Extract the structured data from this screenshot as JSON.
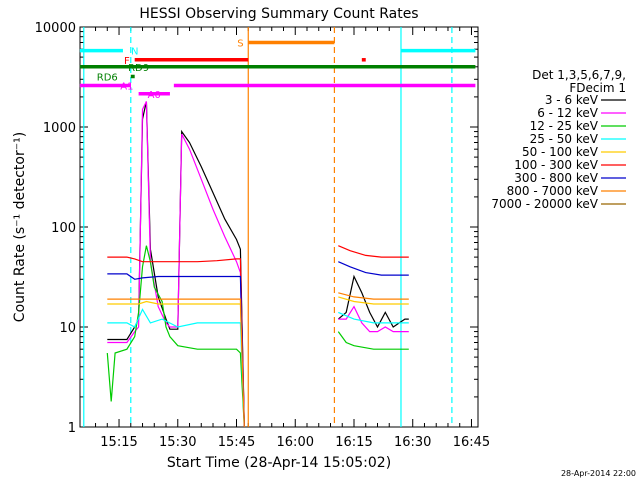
{
  "chart_data": {
    "type": "line",
    "title": "HESSI Observing Summary Count Rates",
    "xlabel": "Start Time (28-Apr-14 15:05:02)",
    "ylabel": "Count Rate (s⁻¹ detector⁻¹)",
    "yscale": "log",
    "ylim": [
      1,
      10000
    ],
    "xlim": [
      "15:05:02",
      "16:46:40"
    ],
    "y_tick_labels": [
      "1",
      "10",
      "100",
      "1000",
      "10000"
    ],
    "x_tick_labels": [
      "15:15",
      "15:30",
      "15:45",
      "16:00",
      "16:15",
      "16:30",
      "16:45"
    ],
    "legend_header": [
      "Det 1,3,5,6,7,9,",
      "FDecim 1"
    ],
    "footer_date": "28-Apr-2014 22:00",
    "series": [
      {
        "name": "3 - 6 keV",
        "color": "#000000",
        "segments": [
          [
            [
              "15:12",
              7.5
            ],
            [
              "15:17",
              7.5
            ],
            [
              "15:19",
              10
            ],
            [
              "15:20",
              12
            ],
            [
              "15:21",
              1200
            ],
            [
              "15:22",
              1800
            ],
            [
              "15:23",
              60
            ],
            [
              "15:25",
              20
            ],
            [
              "15:27",
              12
            ],
            [
              "15:28",
              9.5
            ],
            [
              "15:30",
              9.5
            ],
            [
              "15:31",
              900
            ],
            [
              "15:33",
              700
            ],
            [
              "15:36",
              400
            ],
            [
              "15:39",
              220
            ],
            [
              "15:42",
              120
            ],
            [
              "15:45",
              75
            ],
            [
              "15:46",
              60
            ],
            [
              "15:47",
              1
            ]
          ],
          [
            [
              "16:11",
              12
            ],
            [
              "16:13",
              14
            ],
            [
              "16:15",
              32
            ],
            [
              "16:17",
              22
            ],
            [
              "16:19",
              14
            ],
            [
              "16:21",
              10
            ],
            [
              "16:23",
              14
            ],
            [
              "16:25",
              10
            ],
            [
              "16:28",
              12
            ],
            [
              "16:29",
              12
            ]
          ]
        ]
      },
      {
        "name": "6 - 12 keV",
        "color": "#ff00ff",
        "segments": [
          [
            [
              "15:12",
              7
            ],
            [
              "15:17",
              7
            ],
            [
              "15:19",
              9
            ],
            [
              "15:20",
              10
            ],
            [
              "15:21",
              1500
            ],
            [
              "15:22",
              1800
            ],
            [
              "15:23",
              45
            ],
            [
              "15:25",
              16
            ],
            [
              "15:27",
              11
            ],
            [
              "15:28",
              10
            ],
            [
              "15:30",
              10
            ],
            [
              "15:31",
              850
            ],
            [
              "15:33",
              600
            ],
            [
              "15:36",
              300
            ],
            [
              "15:39",
              150
            ],
            [
              "15:42",
              80
            ],
            [
              "15:45",
              45
            ],
            [
              "15:46",
              35
            ],
            [
              "15:47",
              1
            ]
          ],
          [
            [
              "16:11",
              12
            ],
            [
              "16:13",
              12
            ],
            [
              "16:15",
              16
            ],
            [
              "16:17",
              11
            ],
            [
              "16:19",
              9
            ],
            [
              "16:21",
              9
            ],
            [
              "16:23",
              10
            ],
            [
              "16:25",
              9
            ],
            [
              "16:29",
              9
            ]
          ]
        ]
      },
      {
        "name": "12 - 25 keV",
        "color": "#00cc00",
        "segments": [
          [
            [
              "15:12",
              5.5
            ],
            [
              "15:13",
              1.8
            ],
            [
              "15:14",
              5.5
            ],
            [
              "15:17",
              6
            ],
            [
              "15:19",
              8
            ],
            [
              "15:20",
              14
            ],
            [
              "15:21",
              40
            ],
            [
              "15:22",
              65
            ],
            [
              "15:23",
              45
            ],
            [
              "15:24",
              25
            ],
            [
              "15:26",
              18
            ],
            [
              "15:27",
              10
            ],
            [
              "15:28",
              8
            ],
            [
              "15:30",
              6.5
            ],
            [
              "15:35",
              6
            ],
            [
              "15:40",
              6
            ],
            [
              "15:45",
              6
            ],
            [
              "15:46",
              5.5
            ],
            [
              "15:47",
              1
            ]
          ],
          [
            [
              "16:11",
              9
            ],
            [
              "16:13",
              7
            ],
            [
              "16:15",
              6.5
            ],
            [
              "16:20",
              6
            ],
            [
              "16:25",
              6
            ],
            [
              "16:29",
              6
            ]
          ]
        ]
      },
      {
        "name": "25 - 50 keV",
        "color": "#00ffff",
        "segments": [
          [
            [
              "15:12",
              11
            ],
            [
              "15:17",
              11
            ],
            [
              "15:19",
              10
            ],
            [
              "15:21",
              15
            ],
            [
              "15:23",
              11
            ],
            [
              "15:26",
              12
            ],
            [
              "15:30",
              10
            ],
            [
              "15:35",
              11
            ],
            [
              "15:40",
              11
            ],
            [
              "15:45",
              11
            ],
            [
              "15:46",
              11
            ],
            [
              "15:47",
              1
            ]
          ],
          [
            [
              "16:11",
              14
            ],
            [
              "16:15",
              12
            ],
            [
              "16:20",
              11
            ],
            [
              "16:25",
              11
            ],
            [
              "16:29",
              11
            ]
          ]
        ]
      },
      {
        "name": "50 - 100 keV",
        "color": "#ffcc00",
        "segments": [
          [
            [
              "15:12",
              17
            ],
            [
              "15:20",
              17
            ],
            [
              "15:22",
              18
            ],
            [
              "15:25",
              17
            ],
            [
              "15:30",
              17
            ],
            [
              "15:40",
              17
            ],
            [
              "15:46",
              17
            ],
            [
              "15:47",
              1
            ]
          ],
          [
            [
              "16:11",
              20
            ],
            [
              "16:15",
              18
            ],
            [
              "16:20",
              17
            ],
            [
              "16:25",
              17
            ],
            [
              "16:29",
              17
            ]
          ]
        ]
      },
      {
        "name": "100 - 300 keV",
        "color": "#ff0000",
        "segments": [
          [
            [
              "15:12",
              50
            ],
            [
              "15:17",
              50
            ],
            [
              "15:19",
              48
            ],
            [
              "15:21",
              45
            ],
            [
              "15:25",
              45
            ],
            [
              "15:30",
              45
            ],
            [
              "15:35",
              45
            ],
            [
              "15:40",
              46
            ],
            [
              "15:45",
              48
            ],
            [
              "15:46",
              48
            ],
            [
              "15:47",
              1
            ]
          ],
          [
            [
              "16:11",
              65
            ],
            [
              "16:14",
              58
            ],
            [
              "16:18",
              52
            ],
            [
              "16:22",
              50
            ],
            [
              "16:26",
              50
            ],
            [
              "16:29",
              50
            ]
          ]
        ]
      },
      {
        "name": "300 - 800 keV",
        "color": "#0000cc",
        "segments": [
          [
            [
              "15:12",
              34
            ],
            [
              "15:17",
              34
            ],
            [
              "15:19",
              30
            ],
            [
              "15:21",
              31
            ],
            [
              "15:25",
              32
            ],
            [
              "15:30",
              32
            ],
            [
              "15:35",
              32
            ],
            [
              "15:40",
              32
            ],
            [
              "15:45",
              32
            ],
            [
              "15:46",
              32
            ],
            [
              "15:47",
              1
            ]
          ],
          [
            [
              "16:11",
              45
            ],
            [
              "16:14",
              40
            ],
            [
              "16:18",
              35
            ],
            [
              "16:22",
              33
            ],
            [
              "16:26",
              33
            ],
            [
              "16:29",
              33
            ]
          ]
        ]
      },
      {
        "name": "800 - 7000 keV",
        "color": "#ff8000",
        "segments": [
          [
            [
              "15:12",
              19
            ],
            [
              "15:17",
              19
            ],
            [
              "15:20",
              19
            ],
            [
              "15:25",
              19
            ],
            [
              "15:30",
              19
            ],
            [
              "15:35",
              19
            ],
            [
              "15:40",
              19
            ],
            [
              "15:45",
              19
            ],
            [
              "15:46",
              19
            ],
            [
              "15:47",
              1
            ]
          ],
          [
            [
              "16:11",
              22
            ],
            [
              "16:15",
              20
            ],
            [
              "16:20",
              19
            ],
            [
              "16:25",
              19
            ],
            [
              "16:29",
              19
            ]
          ]
        ]
      },
      {
        "name": "7000 - 20000 keV",
        "color": "#996600",
        "segments": []
      }
    ],
    "markers": [
      {
        "time": "15:06",
        "color": "#00ffff",
        "style": "solid"
      },
      {
        "time": "15:18",
        "color": "#00ffff",
        "style": "dashed"
      },
      {
        "time": "15:48",
        "color": "#ff8000",
        "style": "solid"
      },
      {
        "time": "16:10",
        "color": "#ff8000",
        "style": "dashed"
      },
      {
        "time": "16:27",
        "color": "#00ffff",
        "style": "solid"
      },
      {
        "time": "16:40",
        "color": "#00ffff",
        "style": "dashed"
      }
    ],
    "flags": [
      {
        "label": "N",
        "color": "#00ffff",
        "y_value": 5800,
        "label_time": "15:19",
        "spans": [
          [
            "15:05",
            "15:16"
          ],
          [
            "16:27",
            "16:46"
          ]
        ]
      },
      {
        "label": "S",
        "color": "#ff8000",
        "y_value": 7000,
        "label_time": "15:46",
        "spans": [
          [
            "15:48",
            "16:10"
          ]
        ]
      },
      {
        "label": "F",
        "color": "#ff0000",
        "y_value": 4700,
        "label_time": "15:17",
        "spans": [
          [
            "15:19",
            "15:48"
          ],
          [
            "16:17",
            "16:18"
          ]
        ]
      },
      {
        "label": "RD9",
        "color": "#007f00",
        "y_value": 4000,
        "label_time": "15:20",
        "spans": [
          [
            "15:05",
            "16:46"
          ]
        ]
      },
      {
        "label": "RD6",
        "color": "#007f00",
        "y_value": 3200,
        "label_time": "15:12",
        "spans": [
          [
            "15:18",
            "15:19"
          ]
        ]
      },
      {
        "label": "A1",
        "color": "#ff00ff",
        "y_value": 2600,
        "label_time": "15:17",
        "spans": [
          [
            "15:05",
            "15:18"
          ],
          [
            "15:29",
            "16:46"
          ]
        ]
      },
      {
        "label": "A0",
        "color": "#ff00ff",
        "y_value": 2150,
        "label_time": "15:24",
        "spans": [
          [
            "15:20",
            "15:28"
          ]
        ]
      }
    ]
  }
}
